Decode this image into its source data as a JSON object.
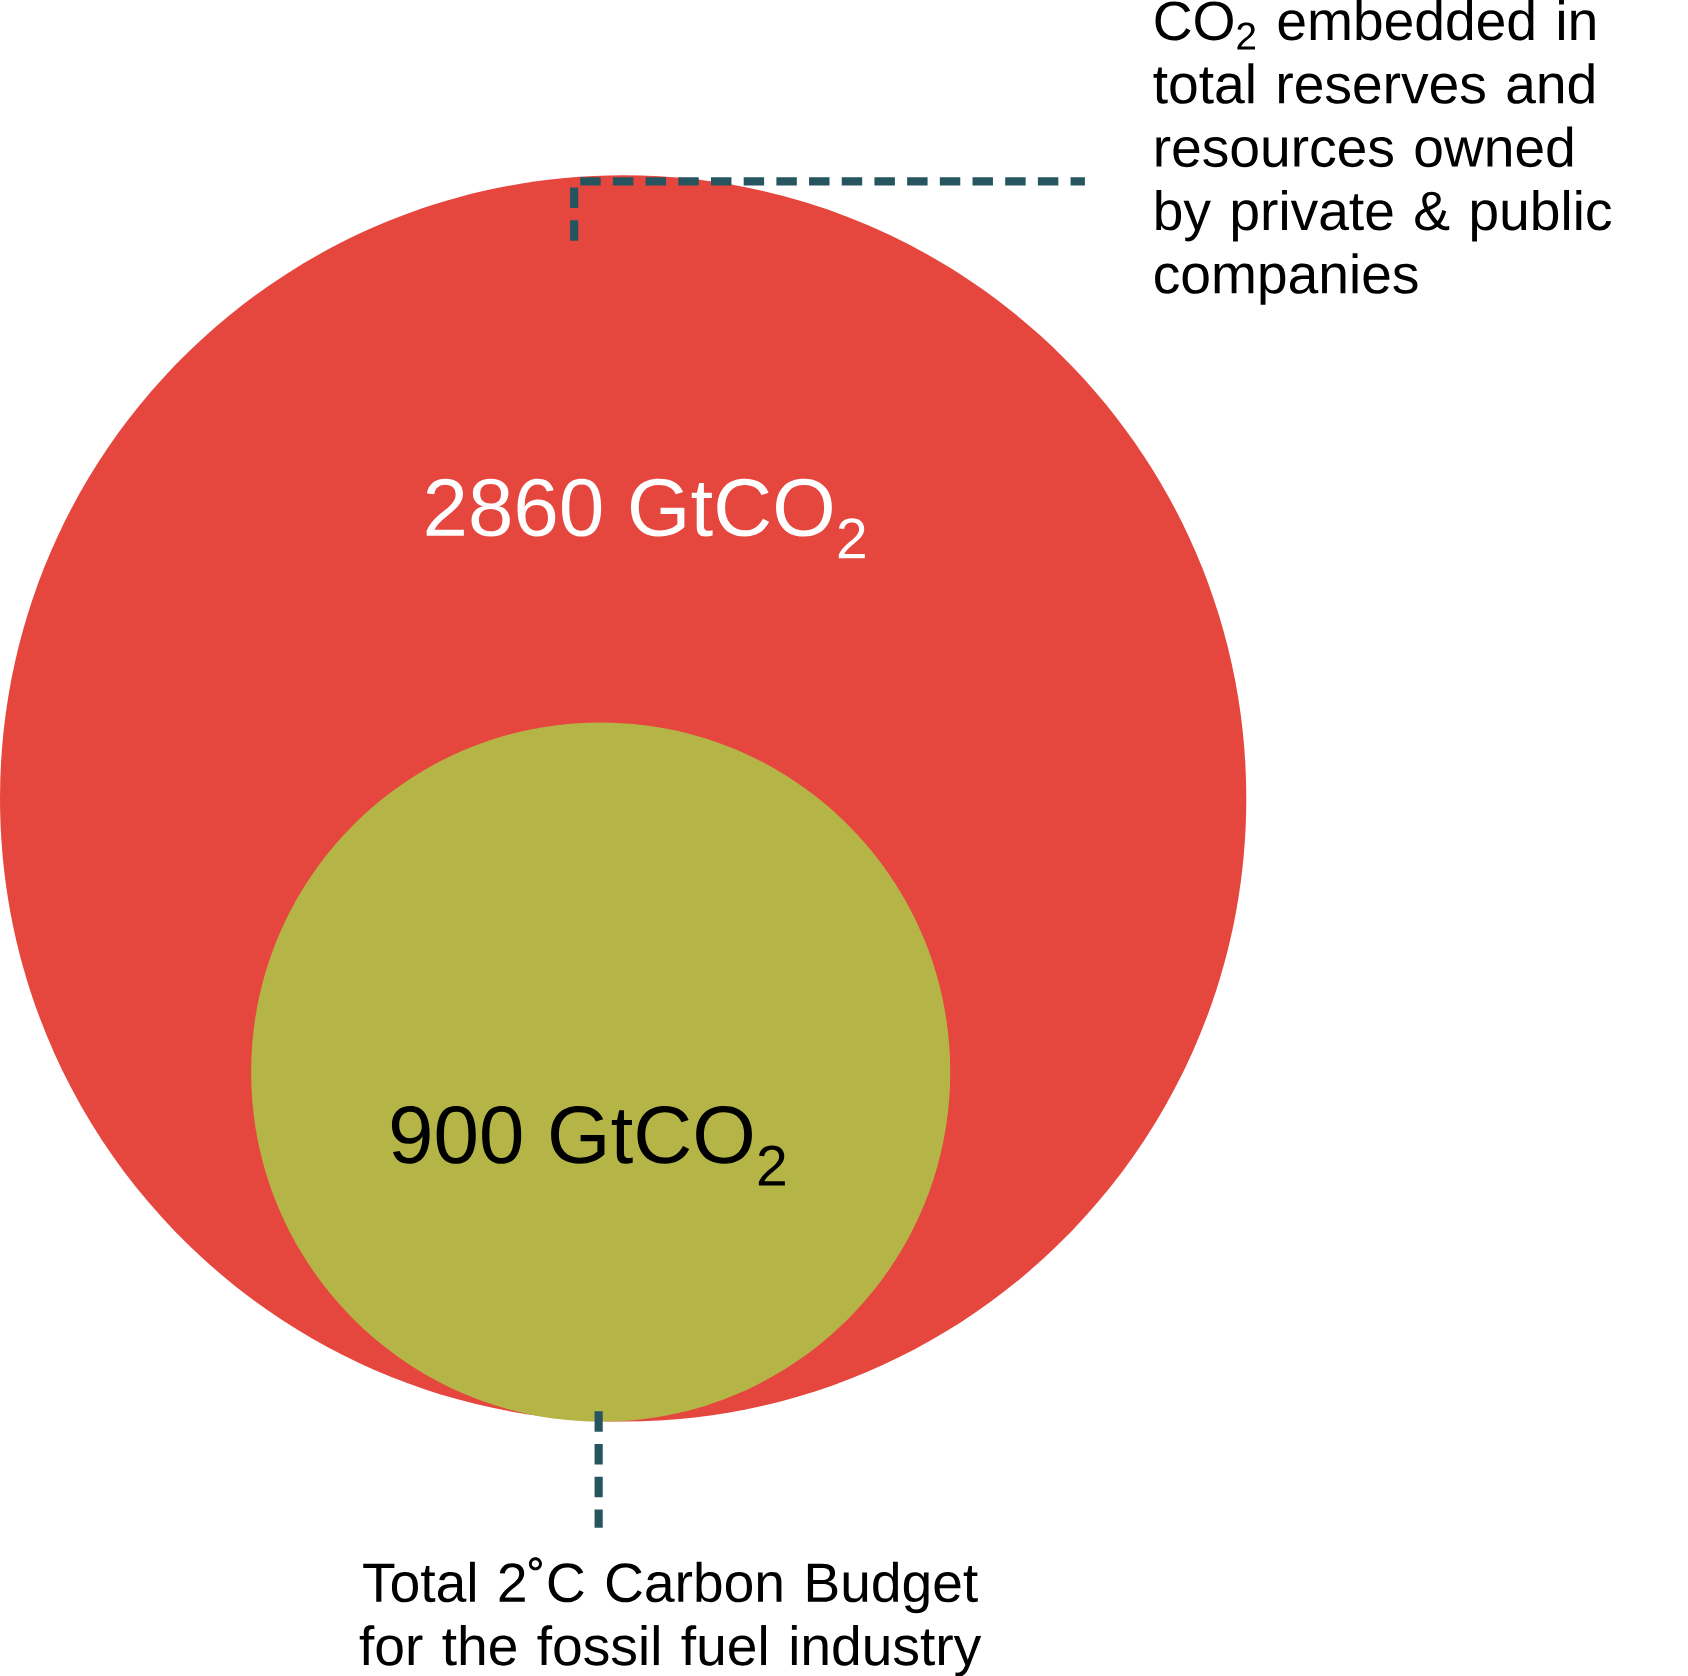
{
  "chart_data": {
    "type": "other",
    "categories": [
      "CO$_{2}$ embedded in total reserves and resources owned by private & public companies",
      "Total 2˚C Carbon Budget for the fossil fuel industry"
    ],
    "values": [
      2860,
      900
    ],
    "value_labels": [
      "2860 GtCO$_{2}$",
      "900 GtCO$_{2}$"
    ],
    "colors": [
      "#e5463d",
      "#b5b547"
    ]
  }
}
